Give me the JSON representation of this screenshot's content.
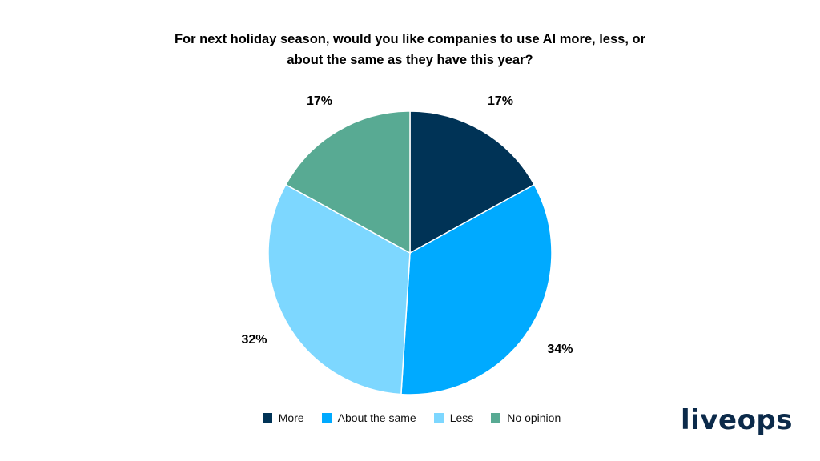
{
  "chart_data": {
    "type": "pie",
    "title": "For next holiday season, would you like companies to use AI more, less, or about the same as they have this year?",
    "title_lines": [
      "For next holiday season, would you like companies to use AI more, less, or",
      "about the same as they have this year?"
    ],
    "start": "12 o'clock",
    "direction": "clockwise",
    "legend_position": "bottom",
    "slices": [
      {
        "name": "More",
        "value": 17,
        "label": "17%",
        "color": "#003356"
      },
      {
        "name": "About the same",
        "value": 34,
        "label": "34%",
        "color": "#00aaff"
      },
      {
        "name": "Less",
        "value": 32,
        "label": "32%",
        "color": "#7dd7ff"
      },
      {
        "name": "No opinion",
        "value": 17,
        "label": "17%",
        "color": "#58aa93"
      }
    ]
  },
  "brand": {
    "logo_text": "liveops",
    "color": "#0b2a4a"
  }
}
